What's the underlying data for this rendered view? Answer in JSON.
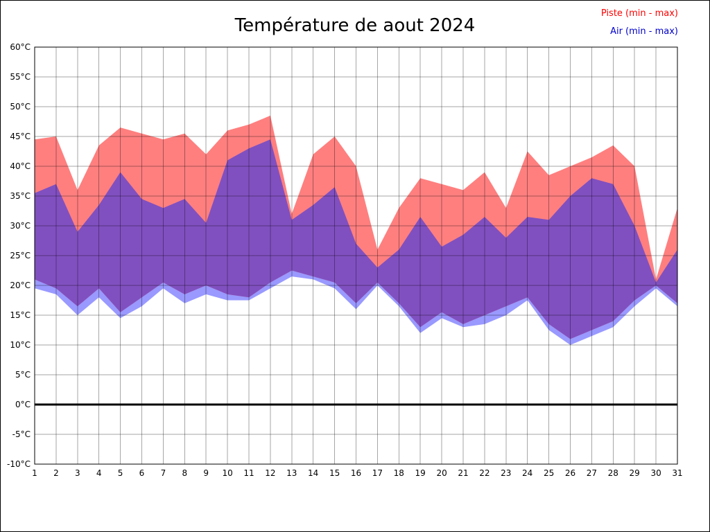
{
  "title": "Température de aout 2024",
  "legend": {
    "piste_label": "Piste (min - max)",
    "air_label": "Air (min - max)"
  },
  "colors": {
    "piste": "#FF7F7F",
    "air": "#9999FF",
    "overlap": "#8050C0",
    "grid": "#000000",
    "axis": "#000000",
    "zero_line": "#000000",
    "legend_piste": "#FF0000",
    "legend_air": "#0000CC",
    "text": "#000000"
  },
  "chart_data": {
    "type": "area",
    "title": "Température de aout 2024",
    "xlabel": "",
    "ylabel": "",
    "ylim": [
      -10,
      60
    ],
    "grid": true,
    "legend_position": "top-right",
    "days": [
      1,
      2,
      3,
      4,
      5,
      6,
      7,
      8,
      9,
      10,
      11,
      12,
      13,
      14,
      15,
      16,
      17,
      18,
      19,
      20,
      21,
      22,
      23,
      24,
      25,
      26,
      27,
      28,
      29,
      30,
      31
    ],
    "x_tick_labels": [
      "1",
      "2",
      "3",
      "4",
      "5",
      "6",
      "7",
      "8",
      "9",
      "10",
      "11",
      "12",
      "13",
      "14",
      "15",
      "16",
      "17",
      "18",
      "19",
      "20",
      "21",
      "22",
      "23",
      "24",
      "25",
      "26",
      "27",
      "28",
      "29",
      "30",
      "31"
    ],
    "y_tick_values": [
      60,
      55,
      50,
      45,
      40,
      35,
      30,
      25,
      20,
      15,
      10,
      5,
      0,
      -5,
      -10
    ],
    "y_tick_labels": [
      "60°C",
      "55°C",
      "50°C",
      "45°C",
      "40°C",
      "35°C",
      "30°C",
      "25°C",
      "20°C",
      "15°C",
      "10°C",
      "5°C",
      "0°C",
      "-5°C",
      "-10°C"
    ],
    "series": [
      {
        "name": "Piste (min - max)",
        "color_key": "piste",
        "max": [
          44.5,
          45,
          36,
          43.5,
          46.5,
          45.5,
          44.5,
          45.5,
          42,
          46,
          47,
          48.5,
          32,
          42,
          45,
          40,
          26,
          33,
          38,
          37,
          36,
          39,
          33,
          42.5,
          38.5,
          40,
          41.5,
          43.5,
          40,
          21,
          33
        ],
        "min": [
          21,
          19.5,
          16.5,
          19.5,
          15.5,
          18,
          20.5,
          18.5,
          20,
          18.5,
          18,
          20.5,
          22.5,
          21.5,
          20.5,
          17,
          20.5,
          17,
          13,
          15.5,
          13.5,
          15,
          16.5,
          18,
          13.5,
          11,
          12.5,
          14,
          17.5,
          20,
          17
        ]
      },
      {
        "name": "Air (min - max)",
        "color_key": "air",
        "max": [
          35.5,
          37,
          29,
          33.5,
          39,
          34.5,
          33,
          34.5,
          30.5,
          41,
          43,
          44.5,
          31,
          33.5,
          36.5,
          27,
          23,
          26,
          31.5,
          26.5,
          28.5,
          31.5,
          28,
          31.5,
          31,
          35,
          38,
          37,
          30,
          20.5,
          26
        ],
        "min": [
          19.5,
          18.5,
          15,
          18,
          14.5,
          16.5,
          19.5,
          17,
          18.5,
          17.5,
          17.5,
          19.5,
          21.5,
          21,
          19.5,
          16,
          20,
          16.5,
          12,
          14.5,
          13,
          13.5,
          15,
          17.5,
          12.5,
          10,
          11.5,
          13,
          16.5,
          19.5,
          16.5
        ]
      }
    ],
    "zero_line": 0
  }
}
